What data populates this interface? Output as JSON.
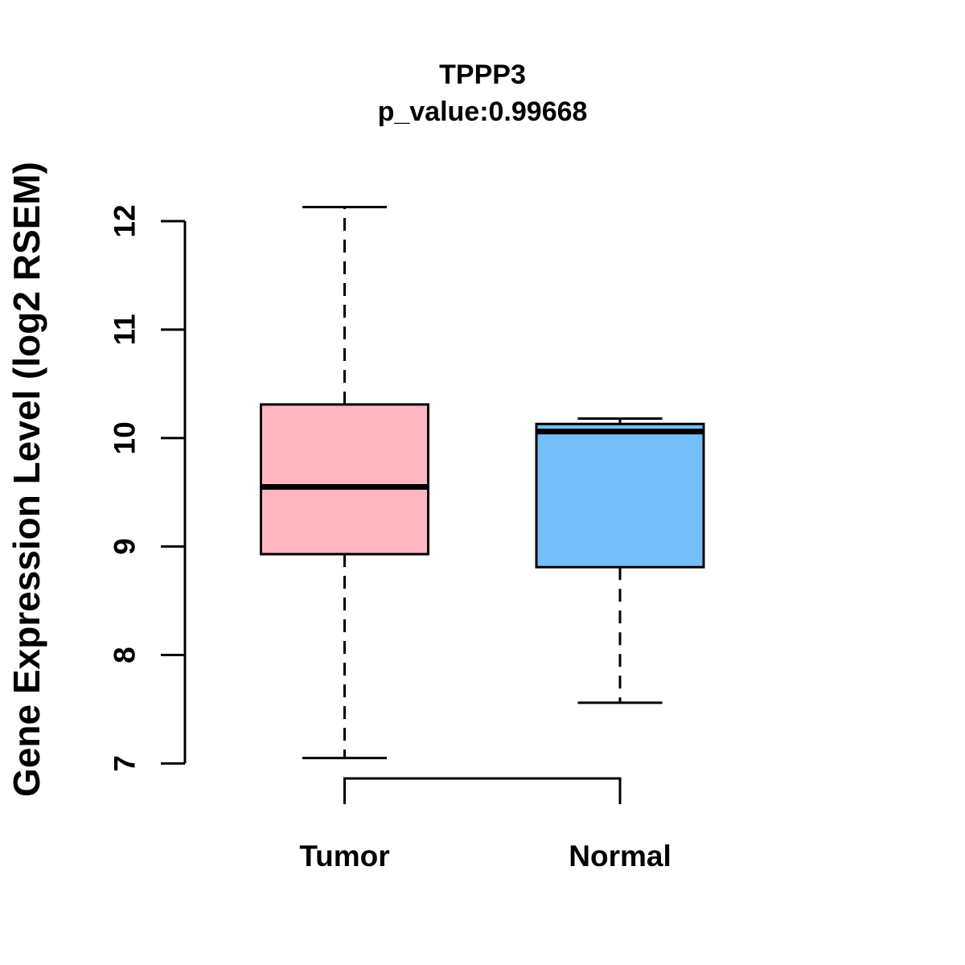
{
  "chart_data": {
    "type": "boxplot",
    "title": "TPPP3",
    "subtitle": "p_value:0.99668",
    "ylabel": "Gene Expression Level (log2 RSEM)",
    "ylim": [
      7,
      12.2
    ],
    "yticks": [
      7,
      8,
      9,
      10,
      11,
      12
    ],
    "grid": "off",
    "axis_color": "#000000",
    "background_color": "#FFFFFF",
    "groups": [
      {
        "label": "Tumor",
        "color": "#FFB6C1",
        "lower_whisker": 7.05,
        "q1": 8.93,
        "median": 9.55,
        "q3": 10.31,
        "upper_whisker": 12.13
      },
      {
        "label": "Normal",
        "color": "#74BFF7",
        "lower_whisker": 7.56,
        "q1": 8.81,
        "median": 10.06,
        "q3": 10.13,
        "upper_whisker": 10.18
      }
    ]
  }
}
